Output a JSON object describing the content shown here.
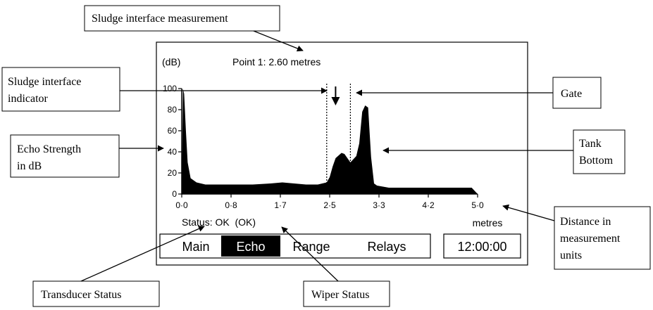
{
  "screen": {
    "unit_label": "(dB)",
    "point_readout": "Point 1: 2.60 metres",
    "status_text": "Status: OK  (OK)",
    "x_unit_label": "metres",
    "clock": "12:00:00"
  },
  "menu": {
    "items": [
      {
        "label": "Main",
        "selected": false
      },
      {
        "label": "Echo",
        "selected": true
      },
      {
        "label": "Range",
        "selected": false
      },
      {
        "label": "Relays",
        "selected": false
      }
    ]
  },
  "chart_data": {
    "type": "area",
    "title": "",
    "xlabel": "metres",
    "ylabel": "(dB)",
    "xlim": [
      0,
      5
    ],
    "ylim": [
      0,
      100
    ],
    "x_tick_labels": [
      "0·0",
      "0·8",
      "1·7",
      "2·5",
      "3·3",
      "4·2",
      "5·0"
    ],
    "y_tick_labels": [
      "0",
      "20",
      "40",
      "60",
      "80",
      "100"
    ],
    "y_ticks": [
      0,
      20,
      40,
      60,
      80,
      100
    ],
    "gate": [
      2.45,
      2.85
    ],
    "interface_distance": 2.6,
    "x": [
      0.0,
      0.02,
      0.04,
      0.07,
      0.1,
      0.15,
      0.25,
      0.4,
      0.8,
      1.2,
      1.5,
      1.7,
      1.9,
      2.1,
      2.3,
      2.45,
      2.5,
      2.55,
      2.6,
      2.7,
      2.75,
      2.8,
      2.85,
      2.95,
      3.0,
      3.05,
      3.1,
      3.15,
      3.2,
      3.25,
      3.3,
      3.5,
      4.0,
      4.5,
      4.9,
      5.0
    ],
    "values": [
      0,
      100,
      95,
      60,
      30,
      15,
      11,
      9,
      9,
      9,
      10,
      11,
      10,
      9,
      9,
      11,
      16,
      26,
      34,
      39,
      38,
      34,
      30,
      36,
      48,
      78,
      84,
      82,
      35,
      10,
      8,
      6,
      6,
      6,
      6,
      0
    ]
  },
  "callouts": {
    "sludge_measurement": "Sludge interface measurement",
    "sludge_indicator_1": "Sludge interface",
    "sludge_indicator_2": "indicator",
    "gate": "Gate",
    "echo_strength_1": "Echo Strength",
    "echo_strength_2": "in dB",
    "tank_bottom_1": "Tank",
    "tank_bottom_2": "Bottom",
    "distance_1": "Distance in",
    "distance_2": "measurement",
    "distance_3": "units",
    "transducer_status": "Transducer Status",
    "wiper_status": "Wiper Status"
  }
}
